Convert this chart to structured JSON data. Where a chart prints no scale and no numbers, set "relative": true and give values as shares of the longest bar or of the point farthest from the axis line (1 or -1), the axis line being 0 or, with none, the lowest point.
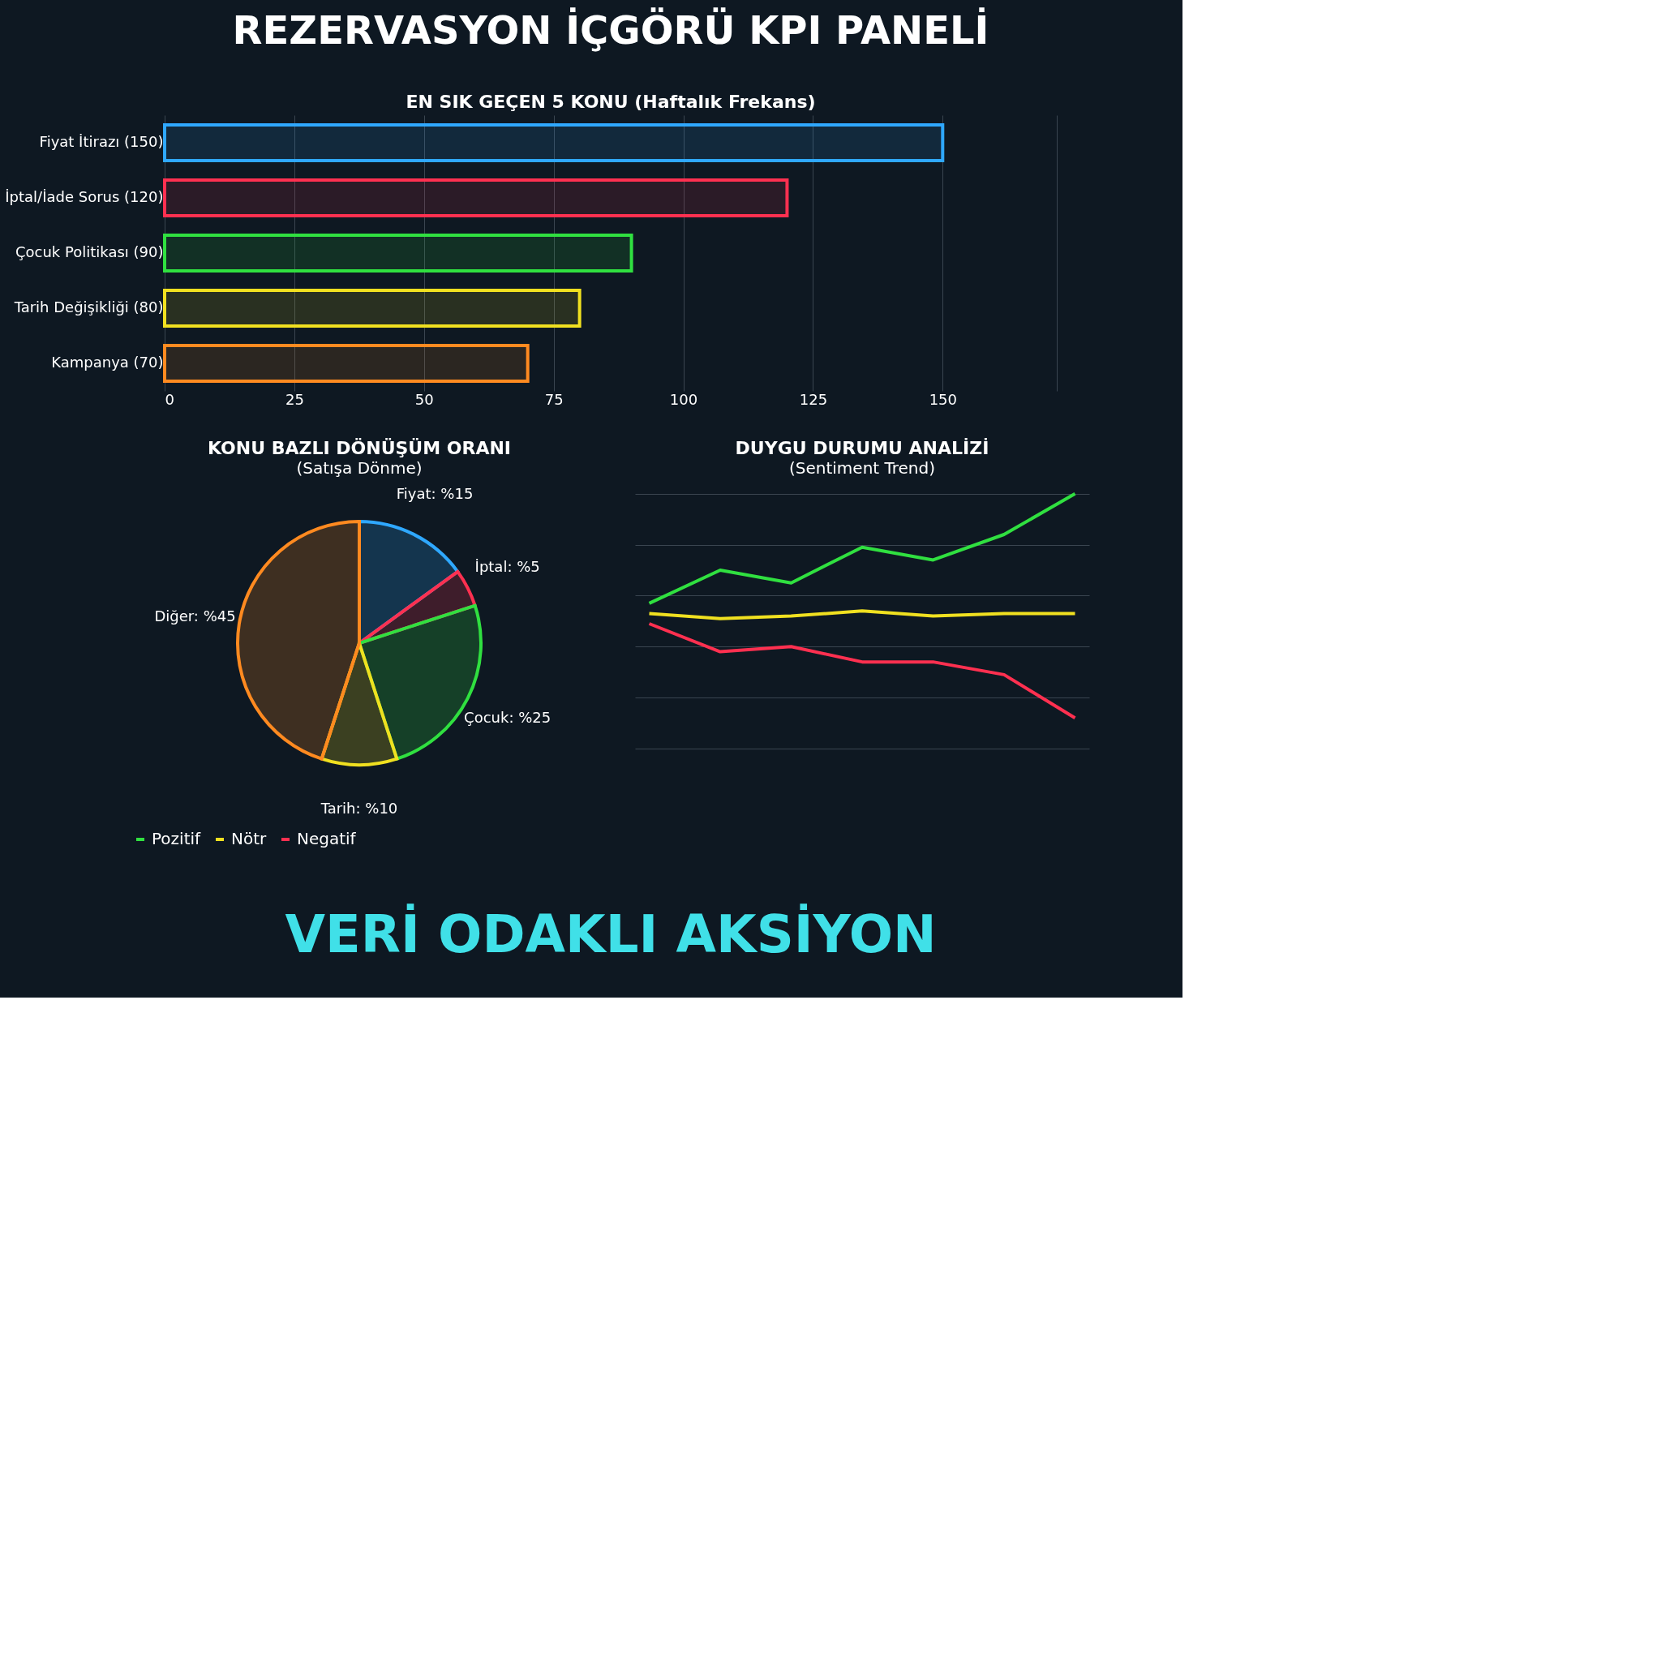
{
  "chart_data": [
    {
      "type": "other",
      "title": "REZERVASYON İÇGÖRÜ KPI PANELİ"
    },
    {
      "type": "bar",
      "orientation": "horizontal",
      "title": "EN SIK GEÇEN 5 KONU (Haftalık Frekans)",
      "categories": [
        "Fiyat İtirazı (150)",
        "İptal/İade Sorus (120)",
        "Çocuk Politikası (90)",
        "Tarih Değişikliği (80)",
        "Kampanya (70)"
      ],
      "values": [
        150,
        120,
        90,
        80,
        70
      ],
      "colors": [
        "#2fa8ff",
        "#ff3050",
        "#30e040",
        "#f0e020",
        "#ff8a20"
      ],
      "xlim": [
        0,
        172
      ],
      "xticks": [
        0,
        25,
        50,
        75,
        100,
        125,
        150,
        {
          "value": 172,
          "label": null
        }
      ],
      "grid": "x"
    },
    {
      "type": "pie",
      "title": "KONU BAZLI DÖNÜŞÜM ORANI",
      "subtitle": "(Satışa Dönme)",
      "categories": [
        "Fiyat: %15",
        "İptal: %5",
        "Çocuk: %25",
        "Tarih: %10",
        "Diğer: %45"
      ],
      "values": [
        15,
        5,
        25,
        10,
        45
      ],
      "colors": [
        "#2fa8ff",
        "#ff3050",
        "#30e040",
        "#f0e020",
        "#ff8a20"
      ]
    },
    {
      "type": "line",
      "title": "DUYGU DURUMU ANALİZİ",
      "subtitle": "(Sentiment Trend)",
      "relative": true,
      "categories": [
        null,
        null,
        null,
        null,
        null,
        null,
        null
      ],
      "legend": "bottom",
      "grid": "y",
      "series": [
        {
          "name": "Pozitif",
          "color": "#30e040",
          "values": [
            0.57,
            0.7,
            0.65,
            0.79,
            0.74,
            0.84,
            1.0
          ]
        },
        {
          "name": "Nötr",
          "color": "#f0e020",
          "values": [
            0.53,
            0.51,
            0.52,
            0.54,
            0.52,
            0.53,
            0.53
          ]
        },
        {
          "name": "Negatif",
          "color": "#ff3050",
          "values": [
            0.49,
            0.38,
            0.4,
            0.34,
            0.34,
            0.29,
            0.12
          ]
        }
      ]
    },
    {
      "type": "other",
      "title": "VERİ ODAKLI AKSİYON"
    }
  ]
}
